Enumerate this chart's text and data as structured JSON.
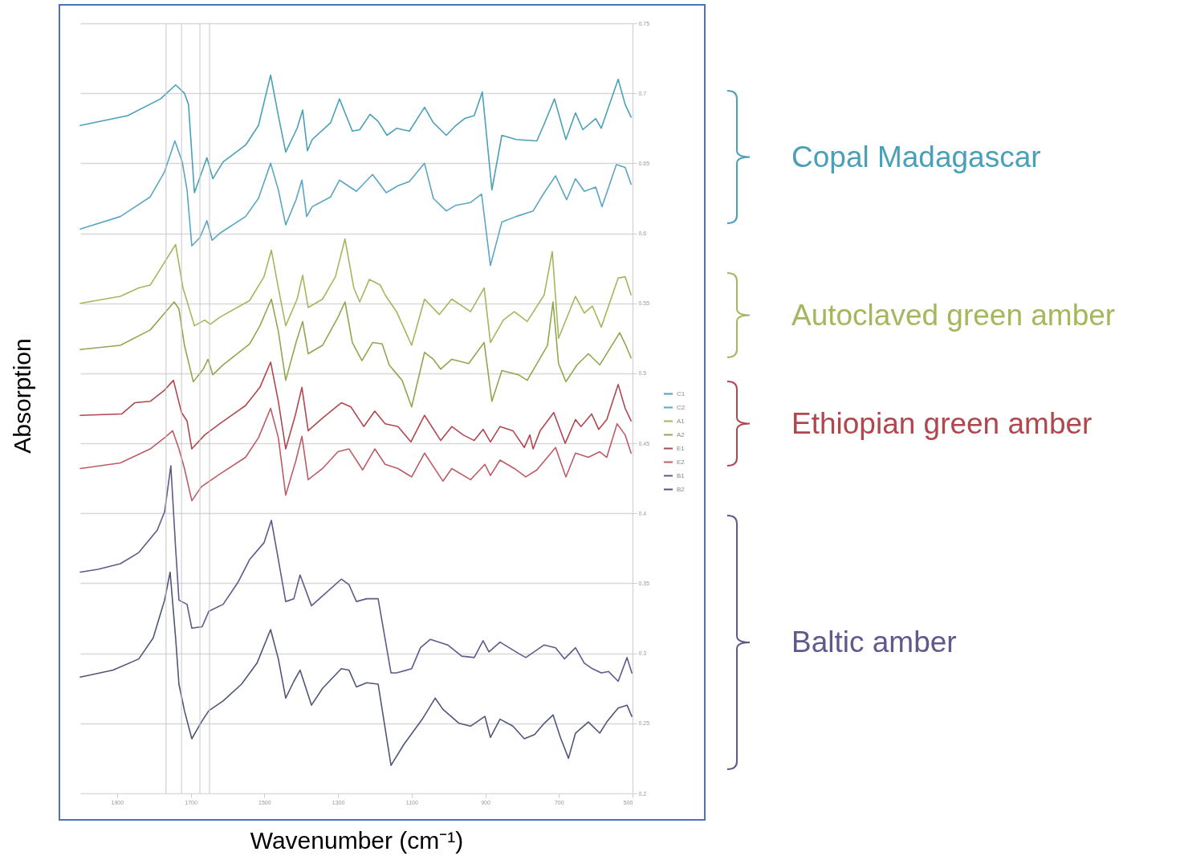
{
  "chart_data": {
    "type": "line",
    "xlabel": "Wavenumber (cm⁻¹)",
    "ylabel": "Absorption",
    "xlim": [
      2000,
      500
    ],
    "xticks": [
      1900,
      1700,
      1500,
      1300,
      1100,
      900,
      700,
      500
    ],
    "ylim": [
      0.2,
      0.75
    ],
    "yticks": [
      0.2,
      0.25,
      0.3,
      0.35,
      0.4,
      0.45,
      0.5,
      0.55,
      0.6,
      0.65,
      0.7,
      0.75
    ],
    "grid": "y",
    "legend": "right",
    "annotations": [
      "Copal Madagascar",
      "Autoclaved green amber",
      "Ethiopian green amber",
      "Baltic amber"
    ],
    "ref_lines": [
      {
        "axis": "x",
        "value": 1767,
        "color": "#c8c8c8"
      },
      {
        "axis": "x",
        "value": 1725,
        "color": "#c8c8c8"
      },
      {
        "axis": "x",
        "value": 1675,
        "color": "#c8c8c8"
      },
      {
        "axis": "x",
        "value": 1649,
        "color": "#c8c8c8"
      }
    ],
    "series": [
      {
        "name": "C1",
        "color": "#4aa0b8",
        "x": [
          2000,
          1871,
          1782,
          1741,
          1717,
          1706,
          1690,
          1656,
          1640,
          1612,
          1551,
          1516,
          1483,
          1462,
          1442,
          1411,
          1396,
          1383,
          1370,
          1320,
          1296,
          1261,
          1241,
          1213,
          1191,
          1167,
          1141,
          1106,
          1065,
          1041,
          1006,
          980,
          956,
          930,
          908,
          882,
          855,
          816,
          760,
          740,
          712,
          681,
          655,
          635,
          600,
          585,
          539,
          520,
          504
        ],
        "values": [
          0.677,
          0.684,
          0.696,
          0.706,
          0.7,
          0.692,
          0.629,
          0.654,
          0.639,
          0.651,
          0.663,
          0.677,
          0.713,
          0.684,
          0.658,
          0.675,
          0.688,
          0.659,
          0.667,
          0.679,
          0.696,
          0.673,
          0.674,
          0.685,
          0.68,
          0.67,
          0.675,
          0.673,
          0.69,
          0.679,
          0.67,
          0.677,
          0.682,
          0.684,
          0.701,
          0.631,
          0.67,
          0.667,
          0.666,
          0.678,
          0.696,
          0.667,
          0.686,
          0.674,
          0.682,
          0.675,
          0.71,
          0.692,
          0.683
        ]
      },
      {
        "name": "C2",
        "color": "#5ba6c4",
        "x": [
          2000,
          1891,
          1810,
          1771,
          1743,
          1723,
          1710,
          1697,
          1675,
          1656,
          1642,
          1621,
          1551,
          1516,
          1483,
          1462,
          1442,
          1414,
          1398,
          1385,
          1370,
          1320,
          1296,
          1250,
          1206,
          1169,
          1137,
          1106,
          1065,
          1041,
          1006,
          980,
          940,
          910,
          886,
          855,
          816,
          770,
          740,
          709,
          679,
          655,
          631,
          600,
          583,
          544,
          520,
          504
        ],
        "values": [
          0.603,
          0.612,
          0.626,
          0.644,
          0.666,
          0.651,
          0.631,
          0.591,
          0.597,
          0.609,
          0.595,
          0.6,
          0.612,
          0.625,
          0.65,
          0.631,
          0.606,
          0.624,
          0.638,
          0.612,
          0.619,
          0.626,
          0.638,
          0.63,
          0.642,
          0.629,
          0.634,
          0.637,
          0.65,
          0.625,
          0.616,
          0.62,
          0.622,
          0.628,
          0.577,
          0.608,
          0.612,
          0.616,
          0.629,
          0.641,
          0.624,
          0.639,
          0.63,
          0.633,
          0.619,
          0.649,
          0.647,
          0.635
        ]
      },
      {
        "name": "A1",
        "color": "#a3b85c",
        "x": [
          2000,
          1891,
          1841,
          1810,
          1741,
          1721,
          1690,
          1662,
          1647,
          1621,
          1540,
          1501,
          1481,
          1462,
          1442,
          1411,
          1396,
          1381,
          1342,
          1307,
          1281,
          1257,
          1241,
          1215,
          1185,
          1172,
          1141,
          1100,
          1065,
          1025,
          991,
          940,
          903,
          886,
          851,
          821,
          786,
          740,
          718,
          701,
          655,
          631,
          609,
          585,
          539,
          520,
          504
        ],
        "values": [
          0.55,
          0.555,
          0.561,
          0.563,
          0.592,
          0.561,
          0.534,
          0.538,
          0.535,
          0.54,
          0.552,
          0.569,
          0.588,
          0.561,
          0.534,
          0.553,
          0.57,
          0.547,
          0.553,
          0.569,
          0.596,
          0.561,
          0.551,
          0.567,
          0.563,
          0.556,
          0.544,
          0.52,
          0.553,
          0.542,
          0.553,
          0.544,
          0.561,
          0.522,
          0.538,
          0.544,
          0.537,
          0.556,
          0.587,
          0.525,
          0.555,
          0.543,
          0.548,
          0.533,
          0.568,
          0.569,
          0.556
        ]
      },
      {
        "name": "A2",
        "color": "#8fa84e",
        "x": [
          2000,
          1891,
          1810,
          1771,
          1745,
          1732,
          1717,
          1693,
          1666,
          1653,
          1640,
          1612,
          1540,
          1512,
          1481,
          1462,
          1442,
          1414,
          1396,
          1381,
          1342,
          1300,
          1281,
          1261,
          1235,
          1206,
          1180,
          1161,
          1126,
          1100,
          1065,
          1041,
          1021,
          991,
          945,
          903,
          882,
          855,
          810,
          786,
          731,
          716,
          701,
          681,
          651,
          620,
          589,
          535,
          520,
          504
        ],
        "values": [
          0.517,
          0.52,
          0.531,
          0.543,
          0.551,
          0.546,
          0.52,
          0.494,
          0.503,
          0.51,
          0.499,
          0.506,
          0.521,
          0.534,
          0.553,
          0.53,
          0.495,
          0.522,
          0.537,
          0.514,
          0.52,
          0.54,
          0.551,
          0.522,
          0.509,
          0.522,
          0.521,
          0.506,
          0.495,
          0.476,
          0.515,
          0.51,
          0.503,
          0.51,
          0.507,
          0.522,
          0.48,
          0.502,
          0.499,
          0.495,
          0.52,
          0.551,
          0.507,
          0.494,
          0.506,
          0.514,
          0.506,
          0.529,
          0.521,
          0.511
        ]
      },
      {
        "name": "E1",
        "color": "#b0474f",
        "x": [
          2000,
          1887,
          1852,
          1810,
          1771,
          1747,
          1725,
          1710,
          1697,
          1662,
          1621,
          1551,
          1512,
          1483,
          1462,
          1442,
          1416,
          1398,
          1381,
          1342,
          1291,
          1265,
          1230,
          1200,
          1172,
          1137,
          1102,
          1065,
          1021,
          991,
          960,
          930,
          906,
          886,
          860,
          825,
          794,
          779,
          770,
          751,
          714,
          683,
          655,
          640,
          611,
          592,
          570,
          539,
          520,
          504
        ],
        "values": [
          0.47,
          0.471,
          0.479,
          0.48,
          0.488,
          0.495,
          0.472,
          0.466,
          0.446,
          0.456,
          0.464,
          0.477,
          0.49,
          0.508,
          0.48,
          0.446,
          0.47,
          0.49,
          0.459,
          0.468,
          0.479,
          0.476,
          0.462,
          0.473,
          0.464,
          0.462,
          0.451,
          0.47,
          0.452,
          0.462,
          0.456,
          0.452,
          0.46,
          0.451,
          0.462,
          0.459,
          0.447,
          0.456,
          0.446,
          0.459,
          0.472,
          0.45,
          0.467,
          0.462,
          0.471,
          0.46,
          0.467,
          0.492,
          0.475,
          0.466
        ]
      },
      {
        "name": "E2",
        "color": "#bd5c64",
        "x": [
          2000,
          1891,
          1810,
          1771,
          1749,
          1732,
          1717,
          1697,
          1671,
          1621,
          1551,
          1516,
          1483,
          1462,
          1442,
          1414,
          1398,
          1381,
          1342,
          1300,
          1270,
          1233,
          1200,
          1172,
          1137,
          1100,
          1065,
          1015,
          991,
          940,
          901,
          886,
          860,
          821,
          790,
          760,
          709,
          681,
          655,
          620,
          589,
          570,
          542,
          520,
          504
        ],
        "values": [
          0.432,
          0.436,
          0.446,
          0.454,
          0.459,
          0.446,
          0.432,
          0.409,
          0.419,
          0.428,
          0.44,
          0.454,
          0.475,
          0.454,
          0.413,
          0.438,
          0.455,
          0.424,
          0.432,
          0.444,
          0.446,
          0.431,
          0.446,
          0.435,
          0.432,
          0.426,
          0.443,
          0.423,
          0.432,
          0.424,
          0.435,
          0.427,
          0.438,
          0.432,
          0.426,
          0.431,
          0.447,
          0.426,
          0.443,
          0.44,
          0.444,
          0.44,
          0.464,
          0.456,
          0.443
        ]
      },
      {
        "name": "B1",
        "color": "#5e5a8c",
        "x": [
          2000,
          1952,
          1891,
          1841,
          1791,
          1771,
          1754,
          1741,
          1732,
          1710,
          1697,
          1669,
          1651,
          1612,
          1571,
          1540,
          1501,
          1481,
          1462,
          1442,
          1420,
          1403,
          1372,
          1342,
          1291,
          1270,
          1250,
          1222,
          1191,
          1156,
          1141,
          1100,
          1076,
          1049,
          1002,
          964,
          930,
          906,
          890,
          860,
          810,
          790,
          740,
          709,
          685,
          655,
          631,
          609,
          585,
          565,
          539,
          515,
          502
        ],
        "values": [
          0.358,
          0.36,
          0.364,
          0.372,
          0.388,
          0.401,
          0.434,
          0.375,
          0.338,
          0.335,
          0.318,
          0.319,
          0.33,
          0.335,
          0.351,
          0.367,
          0.379,
          0.395,
          0.367,
          0.337,
          0.339,
          0.356,
          0.334,
          0.341,
          0.353,
          0.349,
          0.337,
          0.339,
          0.339,
          0.286,
          0.286,
          0.289,
          0.304,
          0.31,
          0.306,
          0.298,
          0.297,
          0.309,
          0.301,
          0.308,
          0.3,
          0.297,
          0.306,
          0.304,
          0.296,
          0.304,
          0.293,
          0.289,
          0.286,
          0.287,
          0.28,
          0.297,
          0.286
        ]
      },
      {
        "name": "B2",
        "color": "#505678",
        "x": [
          2000,
          1911,
          1841,
          1802,
          1771,
          1756,
          1741,
          1732,
          1717,
          1697,
          1671,
          1651,
          1612,
          1562,
          1520,
          1483,
          1462,
          1442,
          1420,
          1403,
          1372,
          1342,
          1291,
          1270,
          1250,
          1222,
          1191,
          1156,
          1121,
          1071,
          1036,
          1015,
          971,
          940,
          901,
          886,
          860,
          825,
          794,
          766,
          740,
          716,
          696,
          674,
          655,
          620,
          589,
          570,
          539,
          515,
          502
        ],
        "values": [
          0.283,
          0.288,
          0.296,
          0.311,
          0.338,
          0.358,
          0.311,
          0.278,
          0.259,
          0.239,
          0.251,
          0.259,
          0.266,
          0.278,
          0.293,
          0.317,
          0.296,
          0.268,
          0.28,
          0.288,
          0.263,
          0.275,
          0.289,
          0.288,
          0.276,
          0.279,
          0.278,
          0.22,
          0.235,
          0.253,
          0.268,
          0.26,
          0.25,
          0.248,
          0.255,
          0.24,
          0.253,
          0.248,
          0.239,
          0.242,
          0.25,
          0.256,
          0.24,
          0.225,
          0.243,
          0.251,
          0.243,
          0.251,
          0.261,
          0.263,
          0.255
        ]
      }
    ]
  }
}
